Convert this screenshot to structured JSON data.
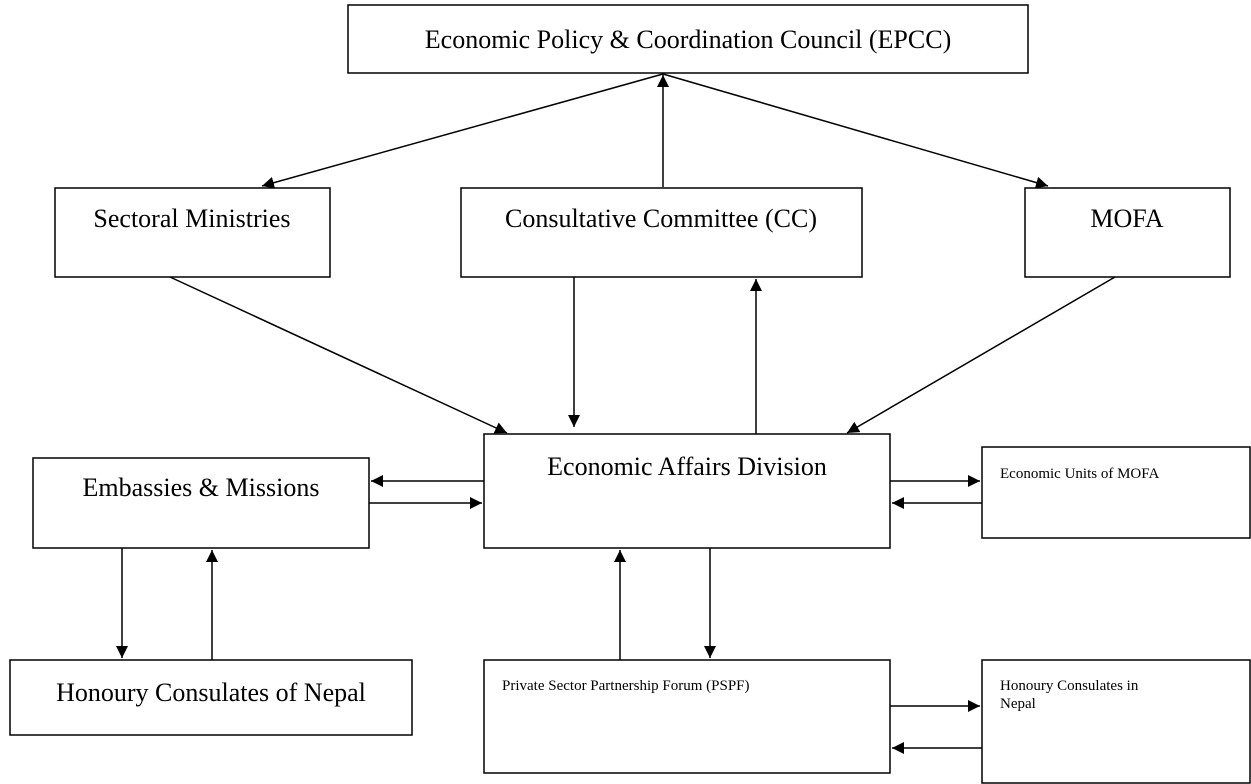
{
  "nodes": [
    {
      "label": "Economic Policy & Coordination Council (EPCC)"
    },
    {
      "label": "Sectoral Ministries"
    },
    {
      "label": "Consultative Committee (CC)"
    },
    {
      "label": "MOFA"
    },
    {
      "label": "Economic Affairs Division"
    },
    {
      "label": "Embassies & Missions"
    },
    {
      "label": "Economic Units of MOFA"
    },
    {
      "label": "Honoury Consulates of Nepal"
    },
    {
      "label": "Private Sector Partnership Forum (PSPF)"
    },
    {
      "lines": [
        "Honoury Consulates in",
        "Nepal"
      ]
    }
  ]
}
